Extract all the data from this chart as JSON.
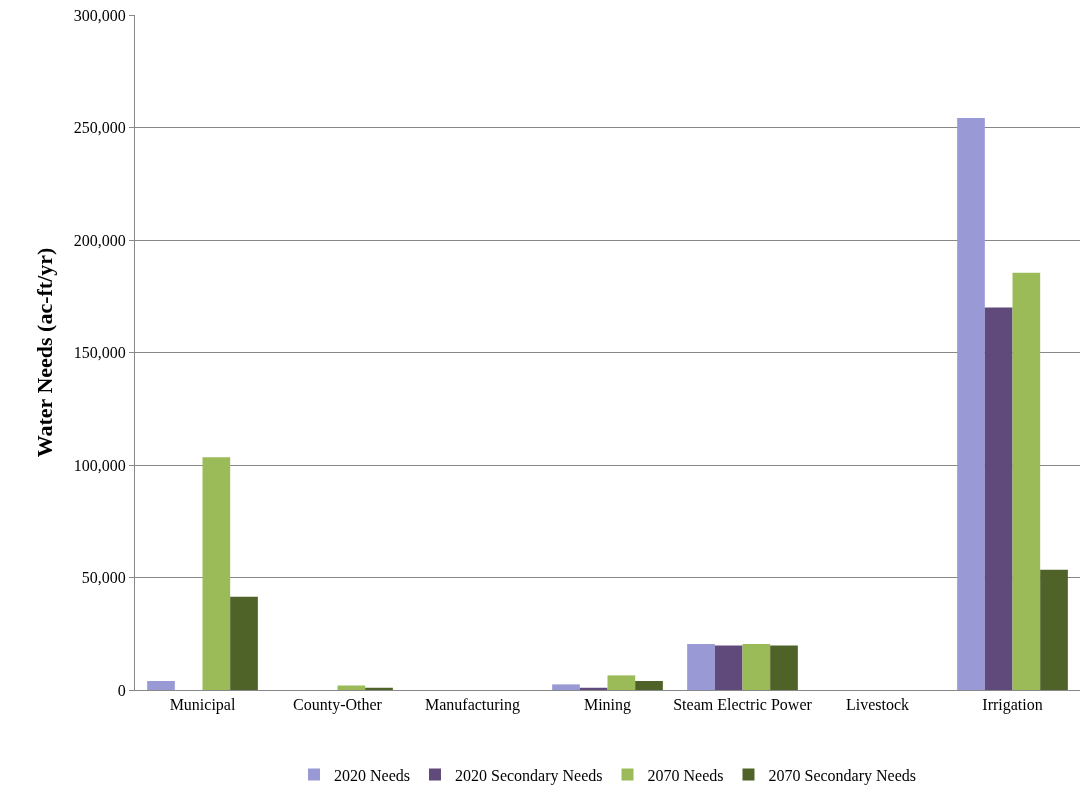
{
  "chart_data": {
    "type": "bar",
    "ylabel": "Water Needs (ac-ft/yr)",
    "categories": [
      "Municipal",
      "County-Other",
      "Manufacturing",
      "Mining",
      "Steam Electric Power",
      "Livestock",
      "Irrigation"
    ],
    "series": [
      {
        "name": "2020 Needs",
        "color": "#9999d6",
        "values": [
          4000,
          0,
          0,
          2500,
          20500,
          0,
          254200
        ]
      },
      {
        "name": "2020 Secondary Needs",
        "color": "#604a7b",
        "values": [
          0,
          0,
          0,
          1000,
          19800,
          0,
          170000
        ]
      },
      {
        "name": "2070 Needs",
        "color": "#9bbb59",
        "values": [
          103500,
          2000,
          0,
          6500,
          20500,
          0,
          185500
        ]
      },
      {
        "name": "2070 Secondary Needs",
        "color": "#4f6228",
        "values": [
          41500,
          1000,
          0,
          4000,
          19800,
          0,
          53500
        ]
      }
    ],
    "ylim": [
      0,
      300000
    ],
    "yticks": [
      {
        "value": 0,
        "label": "0"
      },
      {
        "value": 50000,
        "label": "50,000"
      },
      {
        "value": 100000,
        "label": "100,000"
      },
      {
        "value": 150000,
        "label": "150,000"
      },
      {
        "value": 200000,
        "label": "200,000"
      },
      {
        "value": 250000,
        "label": "250,000"
      },
      {
        "value": 300000,
        "label": "300,000"
      }
    ],
    "grid": "y",
    "legend": "bottom"
  }
}
